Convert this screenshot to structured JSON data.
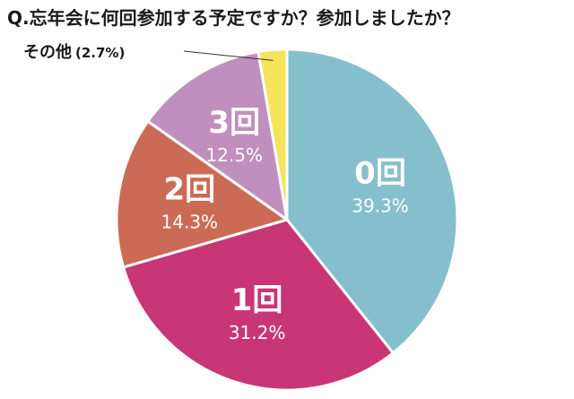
{
  "title": "Q.忘年会に何回参加する予定ですか？参加しましたか？",
  "chart_data": {
    "type": "pie",
    "slices": [
      {
        "label": "0回",
        "value": 39.3,
        "pct": "39.3%",
        "color": "#85bfcc"
      },
      {
        "label": "1回",
        "value": 31.2,
        "pct": "31.2%",
        "color": "#c93676"
      },
      {
        "label": "2回",
        "value": 14.3,
        "pct": "14.3%",
        "color": "#cc6b55"
      },
      {
        "label": "3回",
        "value": 12.5,
        "pct": "12.5%",
        "color": "#c08fbd"
      },
      {
        "label": "その他",
        "value": 2.7,
        "pct": "(2.7%)",
        "color": "#f5e35a"
      }
    ]
  }
}
